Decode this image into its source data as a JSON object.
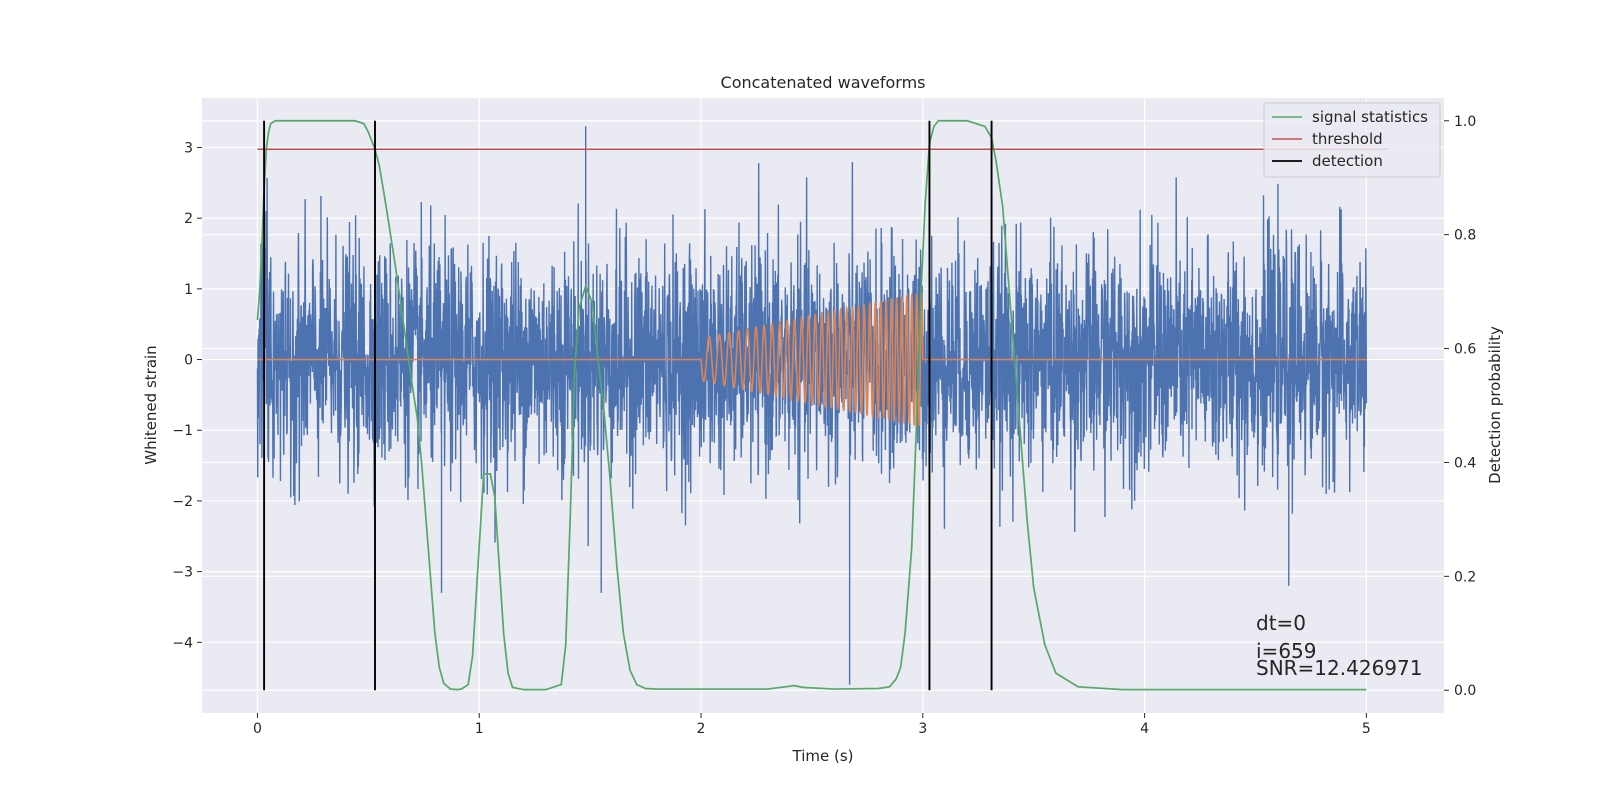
{
  "chart_data": {
    "type": "line",
    "title": "Concatenated waveforms",
    "xlabel": "Time (s)",
    "ylabel_left": "Whitened strain",
    "ylabel_right": "Detection probability",
    "xlim": [
      -0.25,
      5.35
    ],
    "ylim_left": [
      -5.0,
      3.7
    ],
    "ylim_right": [
      -0.04,
      1.04
    ],
    "x_ticks": [
      0,
      1,
      2,
      3,
      4,
      5
    ],
    "x_tick_labels": [
      "0",
      "1",
      "2",
      "3",
      "4",
      "5"
    ],
    "y_left_ticks": [
      -4,
      -3,
      -2,
      -1,
      0,
      1,
      2,
      3
    ],
    "y_left_tick_labels": [
      "−4",
      "−3",
      "−2",
      "−1",
      "0",
      "1",
      "2",
      "3"
    ],
    "y_right_ticks": [
      0.0,
      0.2,
      0.4,
      0.6,
      0.8,
      1.0
    ],
    "y_right_tick_labels": [
      "0.0",
      "0.2",
      "0.4",
      "0.6",
      "0.8",
      "1.0"
    ],
    "grid": true,
    "legend_position": "top-right",
    "series": [
      {
        "name": "",
        "axis": "left",
        "color": "#4c72b0",
        "kind": "noise",
        "x_range": [
          0,
          5
        ],
        "approx_envelope": [
          -1.7,
          1.7
        ],
        "notable_spikes": [
          {
            "x": 1.48,
            "y": 3.3
          },
          {
            "x": 2.67,
            "y": -4.6
          },
          {
            "x": 0.83,
            "y": -3.3
          },
          {
            "x": 1.55,
            "y": -3.3
          },
          {
            "x": 4.65,
            "y": -3.2
          }
        ]
      },
      {
        "name": "",
        "axis": "left",
        "color": "#dd8452",
        "kind": "chirp",
        "baseline": 0,
        "chirp_start_x": 2.0,
        "chirp_end_x": 3.0,
        "amplitude_start": 0.3,
        "amplitude_end": 0.95,
        "x_range": [
          0,
          5
        ]
      },
      {
        "name": "signal statistics",
        "axis": "right",
        "color": "#55a868",
        "x": [
          0,
          0.01,
          0.02,
          0.03,
          0.04,
          0.05,
          0.06,
          0.08,
          0.1,
          0.15,
          0.3,
          0.44,
          0.48,
          0.5,
          0.53,
          0.55,
          0.58,
          0.62,
          0.66,
          0.7,
          0.72,
          0.74,
          0.76,
          0.78,
          0.8,
          0.82,
          0.84,
          0.87,
          0.9,
          0.92,
          0.95,
          0.97,
          0.99,
          1.02,
          1.05,
          1.07,
          1.09,
          1.11,
          1.13,
          1.15,
          1.2,
          1.3,
          1.37,
          1.39,
          1.41,
          1.43,
          1.45,
          1.48,
          1.51,
          1.53,
          1.56,
          1.59,
          1.62,
          1.65,
          1.68,
          1.71,
          1.75,
          1.8,
          2.0,
          2.3,
          2.38,
          2.42,
          2.46,
          2.6,
          2.8,
          2.85,
          2.88,
          2.9,
          2.92,
          2.95,
          2.97,
          2.99,
          3.01,
          3.03,
          3.05,
          3.07,
          3.1,
          3.15,
          3.2,
          3.28,
          3.31,
          3.33,
          3.36,
          3.38,
          3.41,
          3.44,
          3.47,
          3.5,
          3.55,
          3.6,
          3.7,
          3.9,
          5.0
        ],
        "y": [
          0.65,
          0.7,
          0.78,
          0.88,
          0.95,
          0.98,
          0.995,
          1.0,
          1.0,
          1.0,
          1.0,
          1.0,
          0.995,
          0.98,
          0.95,
          0.92,
          0.85,
          0.75,
          0.64,
          0.53,
          0.48,
          0.4,
          0.3,
          0.2,
          0.1,
          0.04,
          0.012,
          0.002,
          0.001,
          0.002,
          0.01,
          0.06,
          0.19,
          0.38,
          0.38,
          0.34,
          0.22,
          0.1,
          0.03,
          0.005,
          0.001,
          0.001,
          0.01,
          0.08,
          0.3,
          0.56,
          0.67,
          0.71,
          0.68,
          0.6,
          0.5,
          0.37,
          0.22,
          0.1,
          0.035,
          0.01,
          0.003,
          0.002,
          0.002,
          0.002,
          0.006,
          0.008,
          0.005,
          0.002,
          0.003,
          0.006,
          0.02,
          0.04,
          0.1,
          0.25,
          0.45,
          0.68,
          0.85,
          0.96,
          0.99,
          1.0,
          1.0,
          1.0,
          1.0,
          0.99,
          0.97,
          0.93,
          0.85,
          0.75,
          0.6,
          0.45,
          0.3,
          0.18,
          0.08,
          0.03,
          0.006,
          0.001,
          0.001
        ]
      },
      {
        "name": "threshold",
        "axis": "right",
        "color": "#c44e52",
        "x": [
          0,
          5.1
        ],
        "y": [
          0.95,
          0.95
        ]
      },
      {
        "name": "detection",
        "axis": "right",
        "color": "#000000",
        "vlines_x": [
          0.03,
          0.53,
          3.03,
          3.31
        ],
        "y": [
          0.0,
          1.0
        ]
      }
    ],
    "annotations": [
      "dt=0",
      "i=659",
      "SNR=12.426971"
    ]
  }
}
